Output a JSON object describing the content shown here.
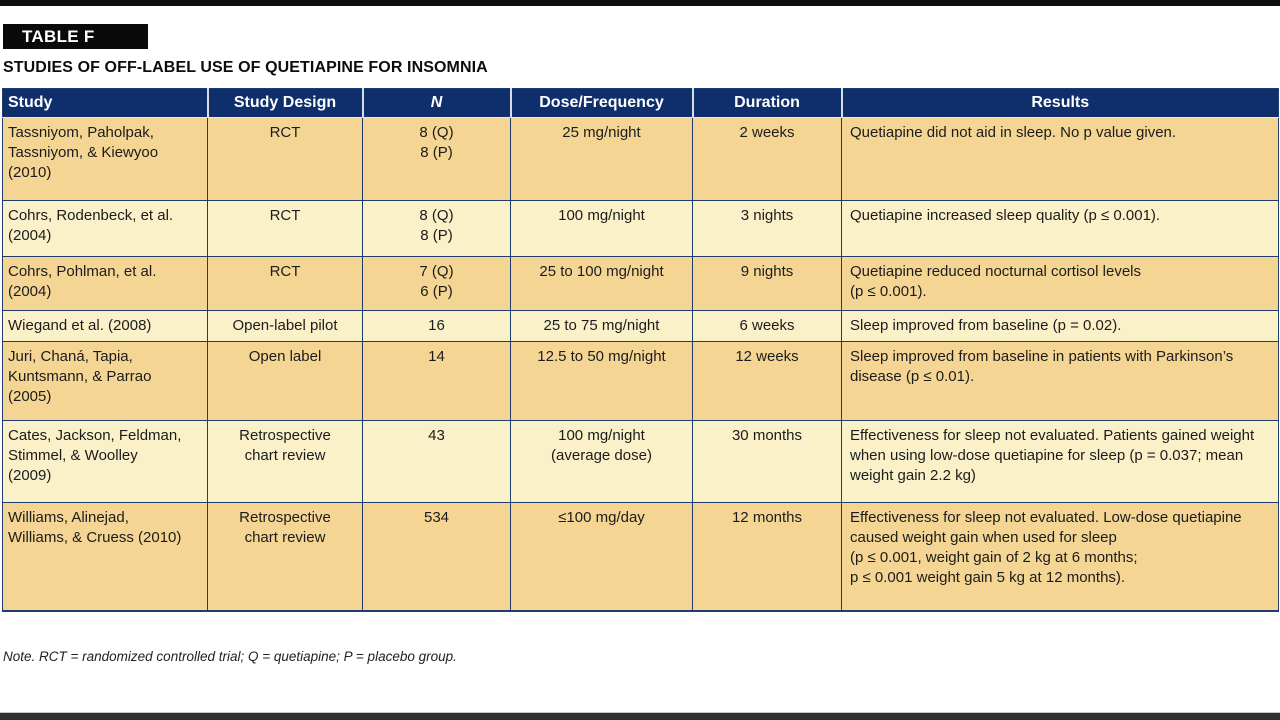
{
  "header": {
    "tag": "TABLE F",
    "title": "STUDIES OF OFF-LABEL USE OF QUETIAPINE FOR INSOMNIA"
  },
  "table": {
    "columns": [
      {
        "key": "study",
        "label": "Study"
      },
      {
        "key": "design",
        "label": "Study Design"
      },
      {
        "key": "n",
        "label": "N"
      },
      {
        "key": "dose",
        "label": "Dose/Frequency"
      },
      {
        "key": "duration",
        "label": "Duration"
      },
      {
        "key": "results",
        "label": "Results"
      }
    ],
    "rows": [
      {
        "study": "Tassniyom, Paholpak,\nTassniyom, & Kiewyoo\n(2010)",
        "design": "RCT",
        "n": "8 (Q)\n8 (P)",
        "dose": "25 mg/night",
        "duration": "2 weeks",
        "results": "Quetiapine did not aid in sleep. No p value given."
      },
      {
        "study": "Cohrs, Rodenbeck, et al.\n(2004)",
        "design": "RCT",
        "n": "8 (Q)\n8 (P)",
        "dose": "100 mg/night",
        "duration": "3 nights",
        "results": "Quetiapine increased sleep quality (p ≤ 0.001)."
      },
      {
        "study": "Cohrs, Pohlman, et al.\n(2004)",
        "design": "RCT",
        "n": "7 (Q)\n6 (P)",
        "dose": "25 to 100 mg/night",
        "duration": "9 nights",
        "results": "Quetiapine reduced nocturnal cortisol levels\n(p ≤ 0.001)."
      },
      {
        "study": "Wiegand et al. (2008)",
        "design": "Open-label pilot",
        "n": "16",
        "dose": "25 to 75 mg/night",
        "duration": "6 weeks",
        "results": "Sleep improved from baseline (p = 0.02)."
      },
      {
        "study": "Juri, Chaná, Tapia,\nKuntsmann, & Parrao\n(2005)",
        "design": "Open label",
        "n": "14",
        "dose": "12.5 to 50 mg/night",
        "duration": "12 weeks",
        "results": "Sleep improved from baseline in patients with Parkinson’s disease (p ≤ 0.01)."
      },
      {
        "study": "Cates, Jackson, Feldman,\nStimmel, & Woolley\n(2009)",
        "design": "Retrospective\nchart review",
        "n": "43",
        "dose": "100 mg/night\n(average dose)",
        "duration": "30 months",
        "results": "Effectiveness for sleep not evaluated. Patients gained weight when using low-dose quetiapine for sleep (p = 0.037; mean weight gain 2.2 kg)"
      },
      {
        "study": "Williams, Alinejad,\nWilliams, & Cruess (2010)",
        "design": "Retrospective\nchart review",
        "n": "534",
        "dose": "≤100 mg/day",
        "duration": "12 months",
        "results": "Effectiveness for sleep not evaluated. Low-dose quetiapine caused weight gain when used for sleep\n(p ≤ 0.001, weight gain of 2 kg at 6 months;\np ≤ 0.001 weight gain 5 kg at 12 months)."
      }
    ]
  },
  "footnote": "Note. RCT = randomized controlled trial; Q = quetiapine; P = placebo group.",
  "colors": {
    "header_bg": "#0e2f6b",
    "row_tan": "#f4d593",
    "row_cream": "#fbf1c9",
    "border_navy": "#1e3c6e",
    "tag_bg": "#0a0a0a"
  }
}
